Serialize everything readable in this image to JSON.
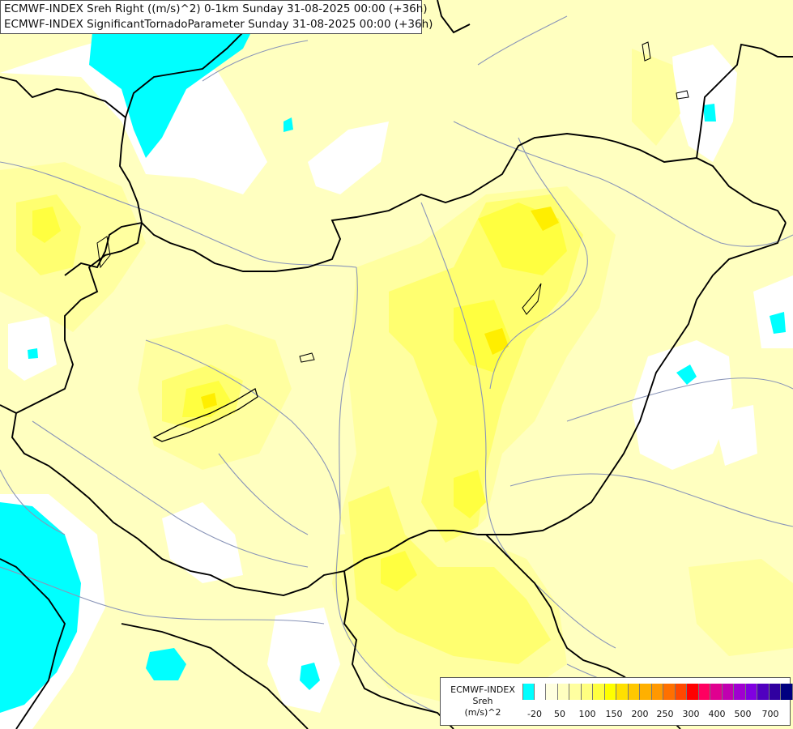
{
  "title": {
    "line1": "ECMWF-INDEX Sreh Right ((m/s)^2) 0-1km Sunday 31-08-2025 00:00 (+36h)",
    "line2": "ECMWF-INDEX SignificantTornadoParameter Sunday 31-08-2025 00:00 (+36h)"
  },
  "legend": {
    "line1": "ECMWF-INDEX",
    "line2": "Sreh",
    "line3": "(m/s)^2",
    "colors": [
      "#00ffff",
      "#ffffff",
      "#ffffe0",
      "#ffffc0",
      "#ffffa0",
      "#ffff80",
      "#ffff40",
      "#ffff00",
      "#ffe000",
      "#ffc800",
      "#ffb000",
      "#ff9800",
      "#ff7000",
      "#ff4800",
      "#ff0000",
      "#ff0060",
      "#e00090",
      "#c000b0",
      "#a000d0",
      "#8000e0",
      "#5000c0",
      "#3000a0",
      "#000080"
    ],
    "ticks": [
      "-20",
      "50",
      "100",
      "150",
      "200",
      "250",
      "300",
      "400",
      "500",
      "700"
    ]
  },
  "map_colors": {
    "background": "#ffffc0",
    "light_yellow": "#ffffa0",
    "mid_yellow": "#ffff70",
    "strong_yellow": "#ffff40",
    "peak_yellow": "#ffee00",
    "white_area": "#ffffff",
    "cyan_area": "#00ffff",
    "border": "#000000",
    "river": "#8a95b8"
  }
}
